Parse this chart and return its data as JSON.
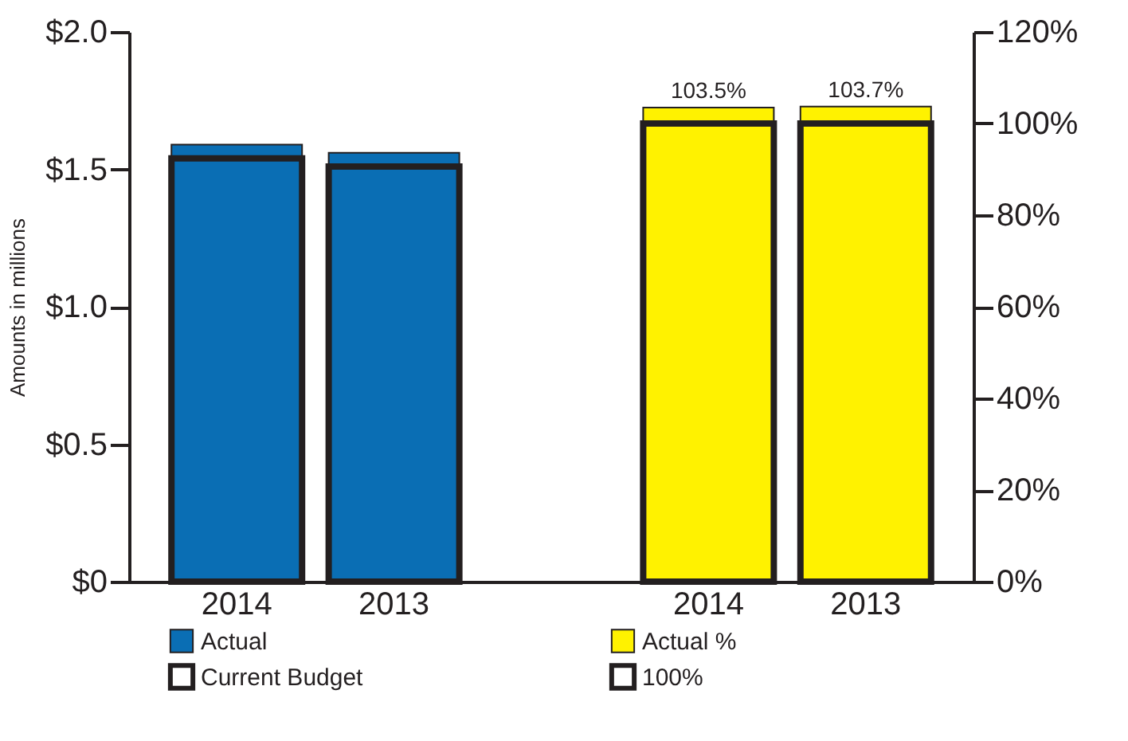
{
  "chart_data": {
    "type": "bar",
    "ylabel": "Amounts in millions",
    "categories": [
      "2014",
      "2013",
      null,
      "2014",
      "2013"
    ],
    "series": [
      {
        "name": "Actual",
        "color": "#0a6eb4",
        "values": [
          1.59,
          1.56,
          null,
          null,
          null
        ]
      },
      {
        "name": "Current Budget",
        "color": "#231f20",
        "line_style": "solid",
        "values": [
          1.54,
          1.51,
          null,
          null,
          null
        ]
      },
      {
        "name": "Actual %",
        "color": "#fff200",
        "axis": "y2",
        "values": [
          null,
          null,
          null,
          103.5,
          103.7
        ],
        "value_labels": [
          null,
          null,
          null,
          "103.5%",
          "103.7%"
        ]
      },
      {
        "name": "100%",
        "color": "#231f20",
        "line_style": "solid",
        "axis": "y2",
        "values": [
          null,
          null,
          null,
          100,
          100
        ]
      }
    ],
    "ylim": [
      0,
      2.0
    ],
    "yticks": [
      {
        "value": 0,
        "label": "$0"
      },
      {
        "value": 0.5,
        "label": "$0.5"
      },
      {
        "value": 1.0,
        "label": "$1.0"
      },
      {
        "value": 1.5,
        "label": "$1.5"
      },
      {
        "value": 2.0,
        "label": "$2.0"
      }
    ],
    "y2lim": [
      0,
      120
    ],
    "y2ticks": [
      {
        "value": 0,
        "label": "0%"
      },
      {
        "value": 20,
        "label": "20%"
      },
      {
        "value": 40,
        "label": "40%"
      },
      {
        "value": 60,
        "label": "60%"
      },
      {
        "value": 80,
        "label": "80%"
      },
      {
        "value": 100,
        "label": "100%"
      },
      {
        "value": 120,
        "label": "120%"
      }
    ],
    "grid": false,
    "legend": "bottom"
  }
}
